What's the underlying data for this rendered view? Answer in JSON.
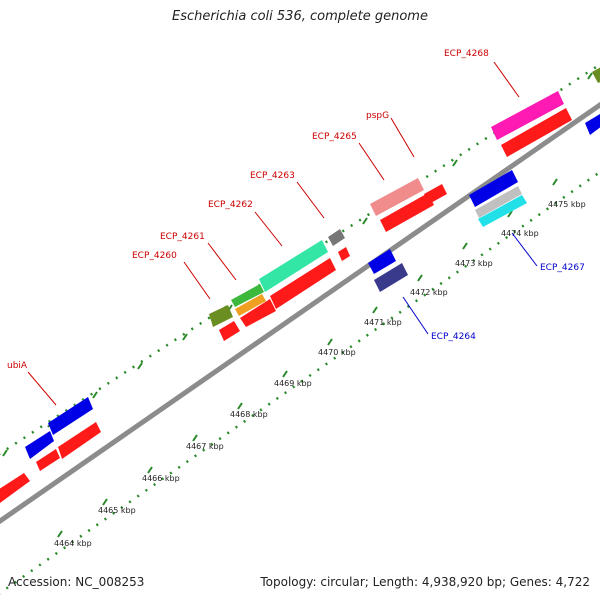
{
  "title": "Escherichia coli 536, complete genome",
  "accession_label": "Accession: NC_008253",
  "summary_label": "Topology: circular; Length: 4,938,920 bp; Genes: 4,722",
  "colors": {
    "backbone": "#8c8c8c",
    "ticks": "#2a8a2a",
    "label_forward": "#cc0000",
    "label_reverse": "#0000cc"
  },
  "scale_labels": [
    "4464 kbp",
    "4465 kbp",
    "4466 kbp",
    "4467 kbp",
    "4468 kbp",
    "4469 kbp",
    "4470 kbp",
    "4471 kbp",
    "4472 kbp",
    "4473 kbp",
    "4474 kbp",
    "4475 kbp"
  ],
  "gene_labels": [
    {
      "text": "ubiA",
      "strand": "forward"
    },
    {
      "text": "ECP_4260",
      "strand": "forward"
    },
    {
      "text": "ECP_4261",
      "strand": "forward"
    },
    {
      "text": "ECP_4262",
      "strand": "forward"
    },
    {
      "text": "ECP_4263",
      "strand": "forward"
    },
    {
      "text": "ECP_4265",
      "strand": "forward"
    },
    {
      "text": "pspG",
      "strand": "forward"
    },
    {
      "text": "ECP_4268",
      "strand": "forward"
    },
    {
      "text": "ECP_4264",
      "strand": "reverse"
    },
    {
      "text": "ECP_4267",
      "strand": "reverse"
    }
  ]
}
